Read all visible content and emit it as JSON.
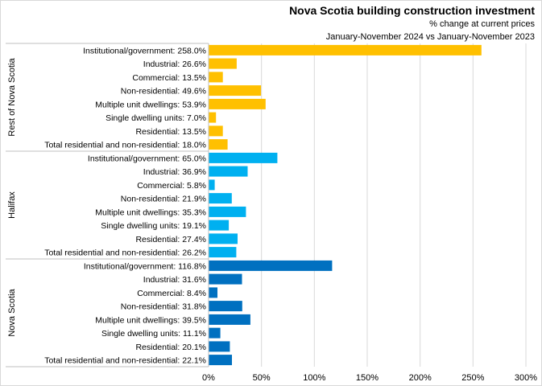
{
  "header": {
    "title": "Nova Scotia building construction investment",
    "subtitle1": "% change at current prices",
    "subtitle2": "January-November  2024 vs January-November  2023"
  },
  "chart_data": {
    "type": "bar",
    "orientation": "horizontal",
    "title": "Nova Scotia building construction investment",
    "subtitle": [
      "% change at current prices",
      "January-November  2024 vs January-November  2023"
    ],
    "xlim": [
      0,
      300
    ],
    "x_ticks": [
      "0%",
      "50%",
      "100%",
      "150%",
      "200%",
      "250%",
      "300%"
    ],
    "grid": "vertical",
    "groups": [
      {
        "name": "Rest of Nova Scotia",
        "color": "#FFC000",
        "categories": [
          "Institutional/government",
          "Industrial",
          "Commercial",
          "Non-residential",
          "Multiple unit dwellings",
          "Single dwelling units",
          "Residential",
          "Total residential and non-residential"
        ],
        "labels": [
          "Institutional/government: 258.0%",
          "Industrial: 26.6%",
          "Commercial: 13.5%",
          "Non-residential: 49.6%",
          "Multiple unit dwellings: 53.9%",
          "Single dwelling units: 7.0%",
          "Residential: 13.5%",
          "Total residential and non-residential: 18.0%"
        ],
        "values": [
          258.0,
          26.6,
          13.5,
          49.6,
          53.9,
          7.0,
          13.5,
          18.0
        ]
      },
      {
        "name": "Halifax",
        "color": "#00B0F0",
        "categories": [
          "Institutional/government",
          "Industrial",
          "Commercial",
          "Non-residential",
          "Multiple unit dwellings",
          "Single dwelling units",
          "Residential",
          "Total residential and non-residential"
        ],
        "labels": [
          "Institutional/government: 65.0%",
          "Industrial: 36.9%",
          "Commercial: 5.8%",
          "Non-residential: 21.9%",
          "Multiple unit dwellings: 35.3%",
          "Single dwelling units: 19.1%",
          "Residential: 27.4%",
          "Total residential and non-residential: 26.2%"
        ],
        "values": [
          65.0,
          36.9,
          5.8,
          21.9,
          35.3,
          19.1,
          27.4,
          26.2
        ]
      },
      {
        "name": "Nova Scotia",
        "color": "#0070C0",
        "categories": [
          "Institutional/government",
          "Industrial",
          "Commercial",
          "Non-residential",
          "Multiple unit dwellings",
          "Single dwelling units",
          "Residential",
          "Total residential and non-residential"
        ],
        "labels": [
          "Institutional/government: 116.8%",
          "Industrial: 31.6%",
          "Commercial: 8.4%",
          "Non-residential: 31.8%",
          "Multiple unit dwellings: 39.5%",
          "Single dwelling units: 11.1%",
          "Residential: 20.1%",
          "Total residential and non-residential: 22.1%"
        ],
        "values": [
          116.8,
          31.6,
          8.4,
          31.8,
          39.5,
          11.1,
          20.1,
          22.1
        ]
      }
    ]
  }
}
